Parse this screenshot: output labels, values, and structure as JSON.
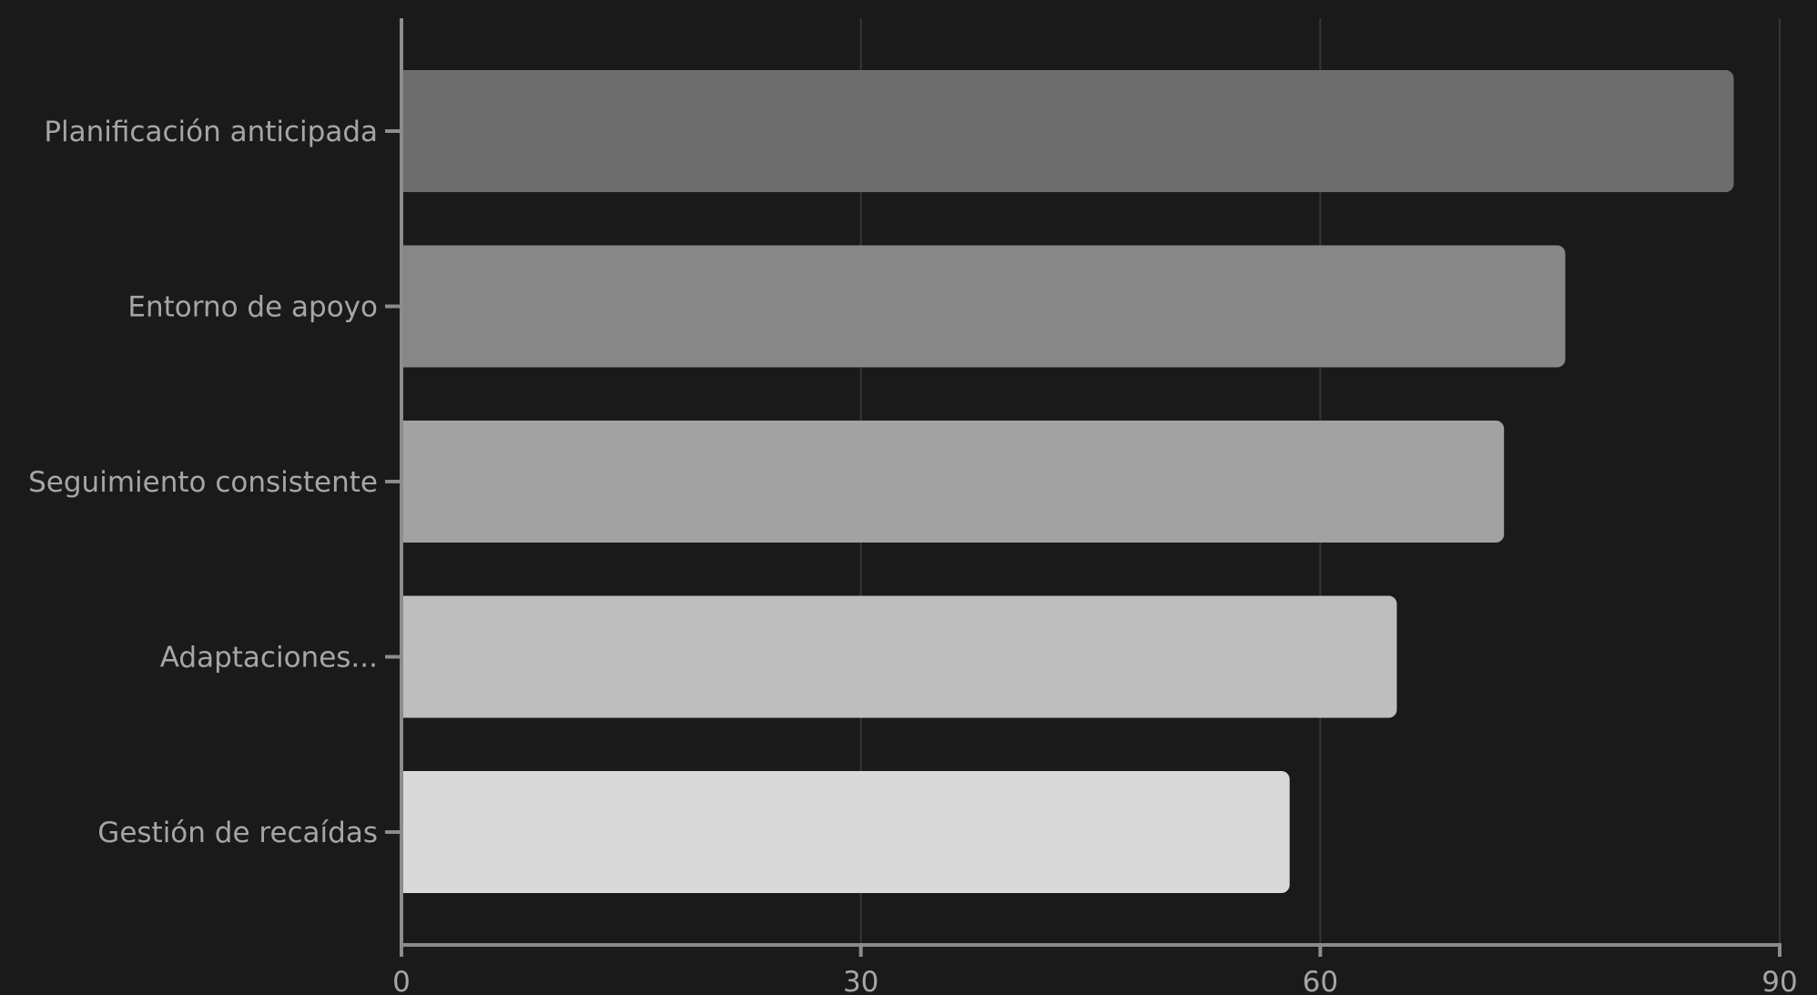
{
  "chart_data": {
    "type": "bar",
    "orientation": "horizontal",
    "categories": [
      "Planificación anticipada",
      "Entorno de apoyo",
      "Seguimiento consistente",
      "Adaptaciones...",
      "Gestión de recaídas"
    ],
    "values": [
      87,
      76,
      72,
      65,
      58
    ],
    "bar_colors": [
      "#6d6d6d",
      "#878787",
      "#a2a2a2",
      "#bebebe",
      "#d9d9d9"
    ],
    "xticks": [
      "0",
      "30",
      "60",
      "90"
    ],
    "xlim": [
      0,
      90
    ],
    "grid": true,
    "title": "",
    "xlabel": "",
    "ylabel": "",
    "legend": "none",
    "colors": {
      "background": "#1b1a1b",
      "axis": "#8c8c8c",
      "grid": "#353535",
      "label": "#a6a6a6"
    }
  }
}
